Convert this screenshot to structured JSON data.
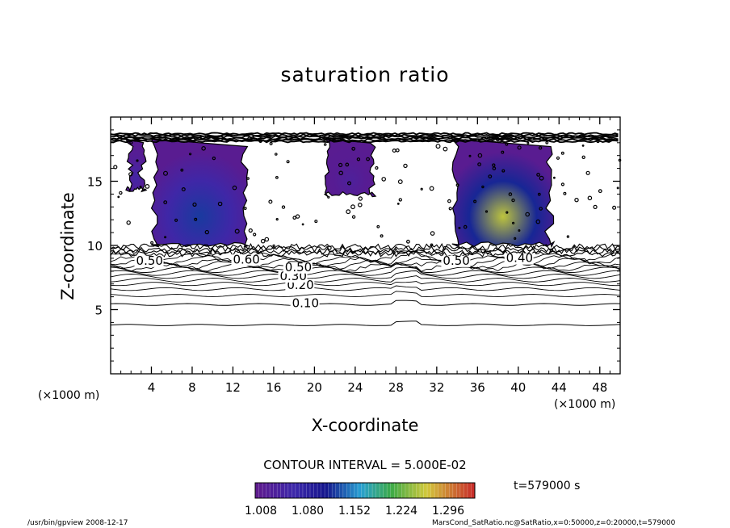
{
  "chart_data": {
    "type": "heatmap",
    "title": "saturation ratio",
    "xlabel": "X-coordinate",
    "ylabel": "Z-coordinate",
    "x_unit": "(×1000 m)",
    "xlim": [
      0,
      50
    ],
    "ylim": [
      0,
      20
    ],
    "xticks": [
      4,
      8,
      12,
      16,
      20,
      24,
      28,
      32,
      36,
      40,
      44,
      48
    ],
    "yticks": [
      5,
      10,
      15
    ],
    "contour_interval": "CONTOUR INTERVAL = 5.000E-02",
    "time": "t=579000 s",
    "contour_labels": [
      {
        "text": "0.10",
        "x": 17.8,
        "z": 5.2
      },
      {
        "text": "0.20",
        "x": 17.3,
        "z": 6.6
      },
      {
        "text": "0.30",
        "x": 16.6,
        "z": 7.3
      },
      {
        "text": "0.50",
        "x": 17.1,
        "z": 8.0
      },
      {
        "text": "0.60",
        "x": 12.0,
        "z": 8.6
      },
      {
        "text": "0.50",
        "x": 2.5,
        "z": 8.5
      },
      {
        "text": "0.50",
        "x": 32.6,
        "z": 8.5
      },
      {
        "text": "0.40",
        "x": 38.8,
        "z": 8.7
      }
    ],
    "supersaturated_regions": [
      {
        "x": [
          1.5,
          3.5
        ],
        "z": [
          14.2,
          18.3
        ],
        "peak": 1.05
      },
      {
        "x": [
          4.0,
          13.5
        ],
        "z": [
          9.9,
          18.3
        ],
        "peak": 1.12
      },
      {
        "x": [
          21.0,
          26.0
        ],
        "z": [
          13.8,
          18.3
        ],
        "peak": 1.03
      },
      {
        "x": [
          33.5,
          43.5
        ],
        "z": [
          9.9,
          18.3
        ],
        "peak": 1.25
      }
    ],
    "colorbar": {
      "colormap": "purple-blue-cyan-green-yellow-red",
      "tick_labels": [
        "1.008",
        "1.080",
        "1.152",
        "1.224",
        "1.296"
      ]
    }
  },
  "footer_left": "/usr/bin/gpview   2008-12-17",
  "footer_right": "MarsCond_SatRatio.nc@SatRatio,x=0:50000,z=0:20000,t=579000"
}
